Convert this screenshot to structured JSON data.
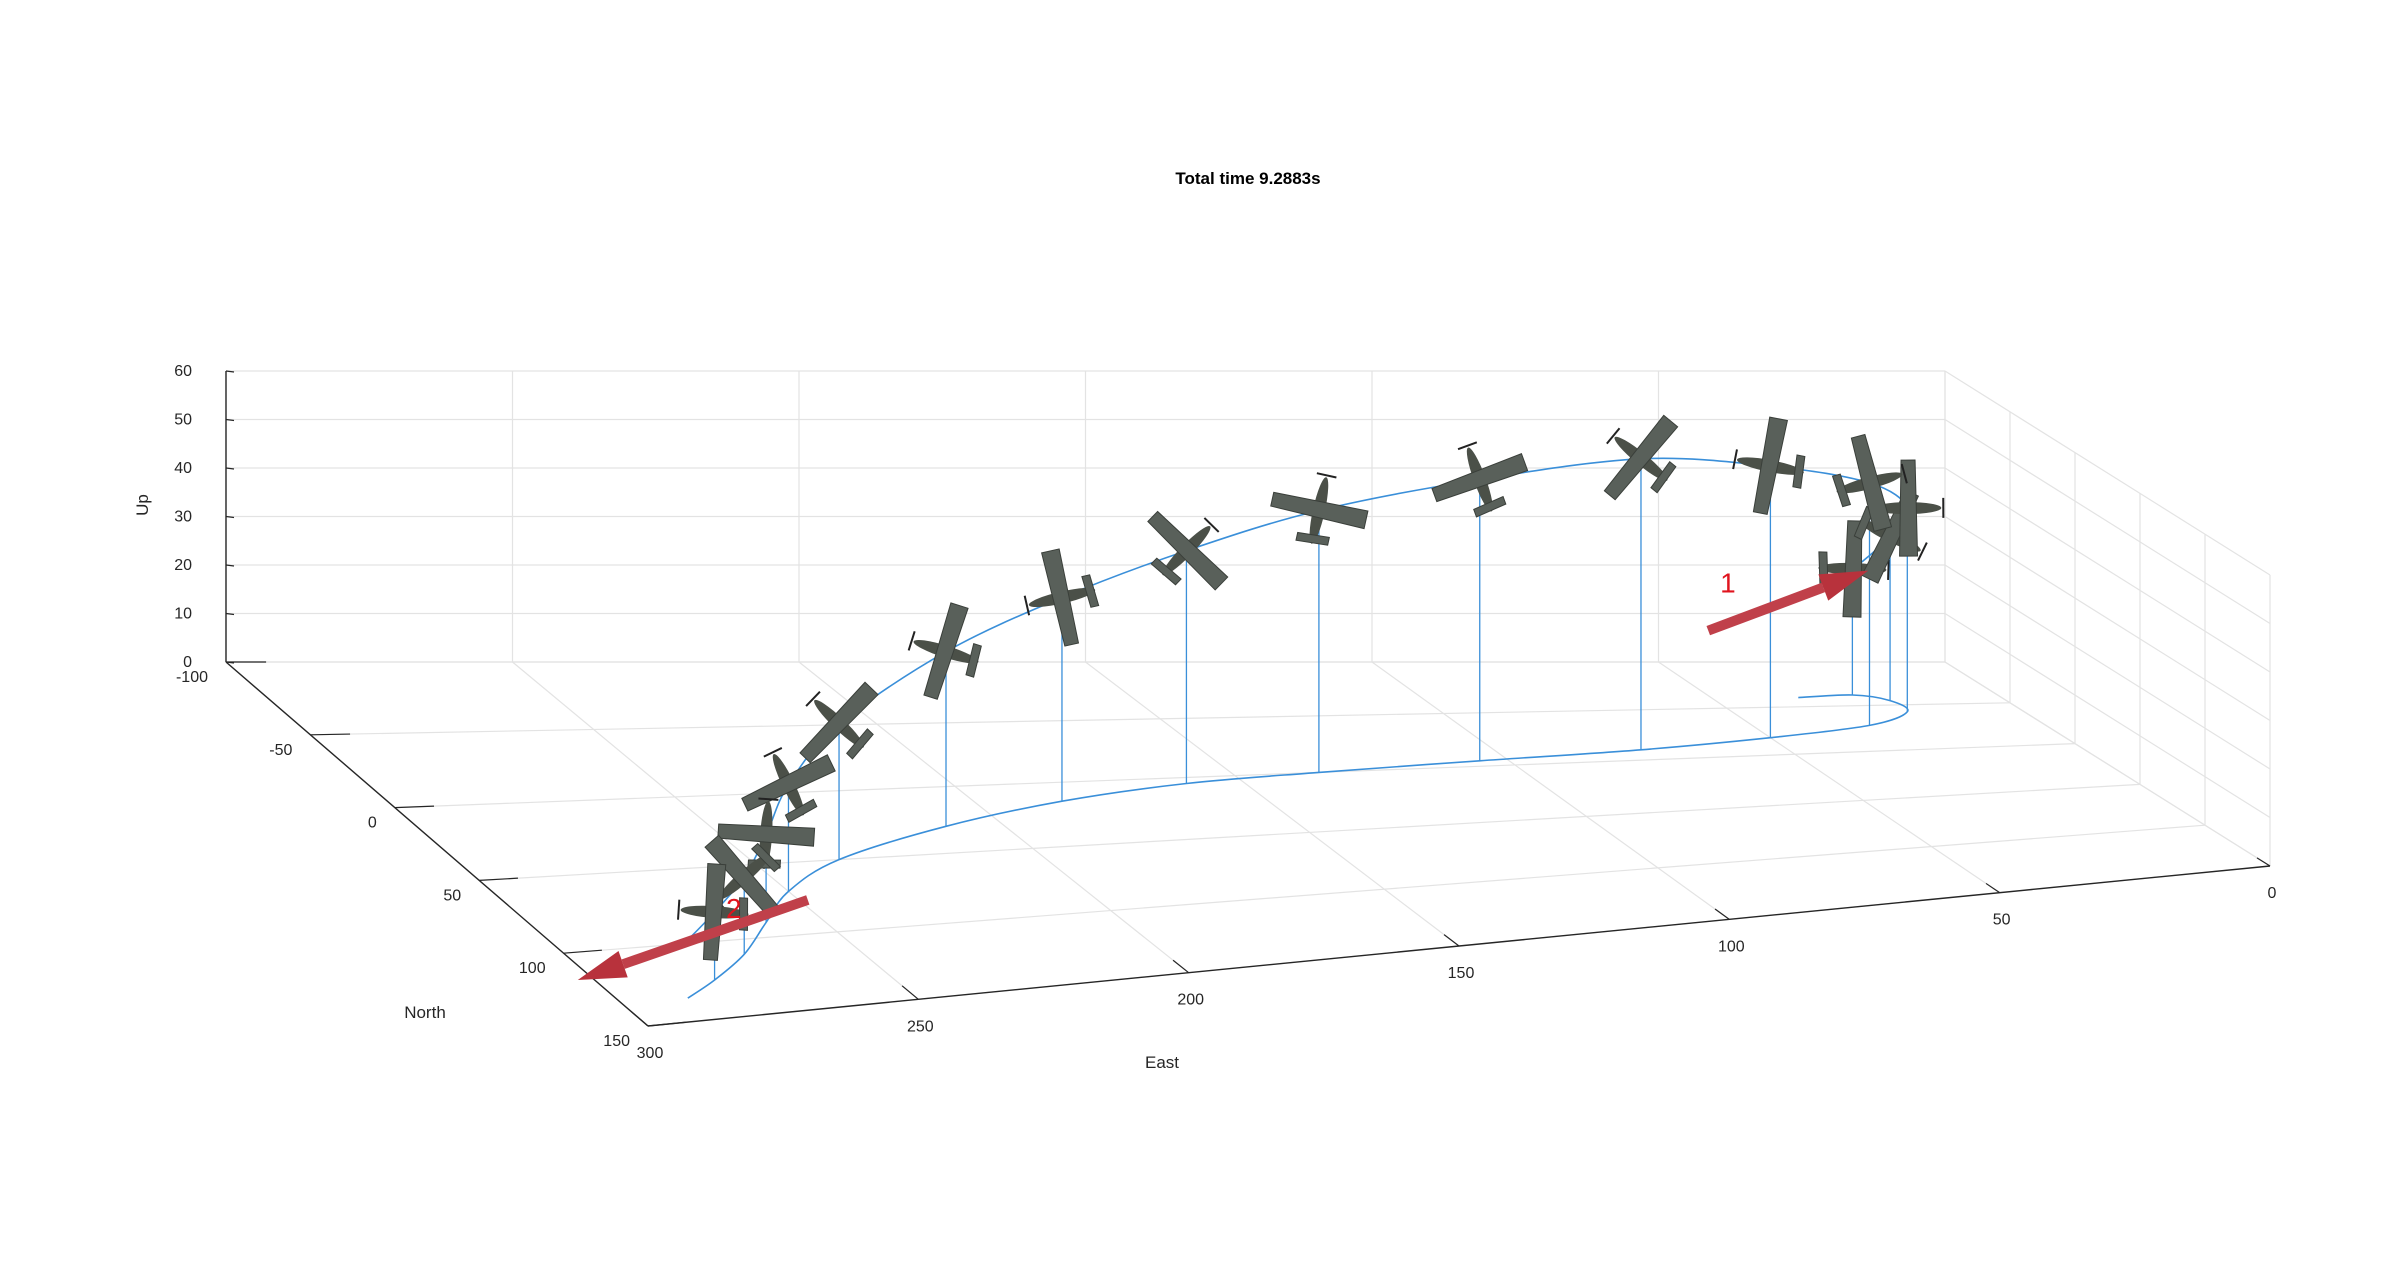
{
  "chart_data": {
    "type": "line",
    "title": "Total time 9.2883s",
    "xlabel": "East",
    "ylabel": "North",
    "zlabel": "Up",
    "xlim": [
      0,
      300
    ],
    "ylim": [
      -100,
      150
    ],
    "zlim": [
      0,
      60
    ],
    "x_ticks": [
      "300",
      "250",
      "200",
      "150",
      "100",
      "50",
      "0"
    ],
    "y_ticks": [
      "-100",
      "-50",
      "0",
      "50",
      "100",
      "150"
    ],
    "z_ticks": [
      "0",
      "10",
      "20",
      "30",
      "40",
      "50",
      "60"
    ],
    "grid": true,
    "series": [
      {
        "x": [
          35,
          25,
          20,
          20,
          30,
          50,
          75,
          105,
          135,
          160,
          185,
          210,
          235,
          250,
          260,
          270,
          280,
          288
        ],
        "y": [
          -60,
          -62,
          -55,
          -42,
          -28,
          -18,
          -10,
          -5,
          0,
          5,
          15,
          30,
          50,
          70,
          90,
          110,
          125,
          135
        ],
        "z": [
          20,
          26,
          34,
          42,
          50,
          56,
          60,
          58,
          54,
          48,
          42,
          36,
          28,
          22,
          18,
          16,
          14,
          12
        ],
        "color": "#3a8fd9"
      }
    ],
    "annotations": [
      {
        "text": "1",
        "x": 45,
        "y": -70,
        "z": 20,
        "color": "#e0141e"
      },
      {
        "text": "2",
        "x": 278,
        "y": 130,
        "z": 14,
        "color": "#e0141e"
      }
    ]
  }
}
